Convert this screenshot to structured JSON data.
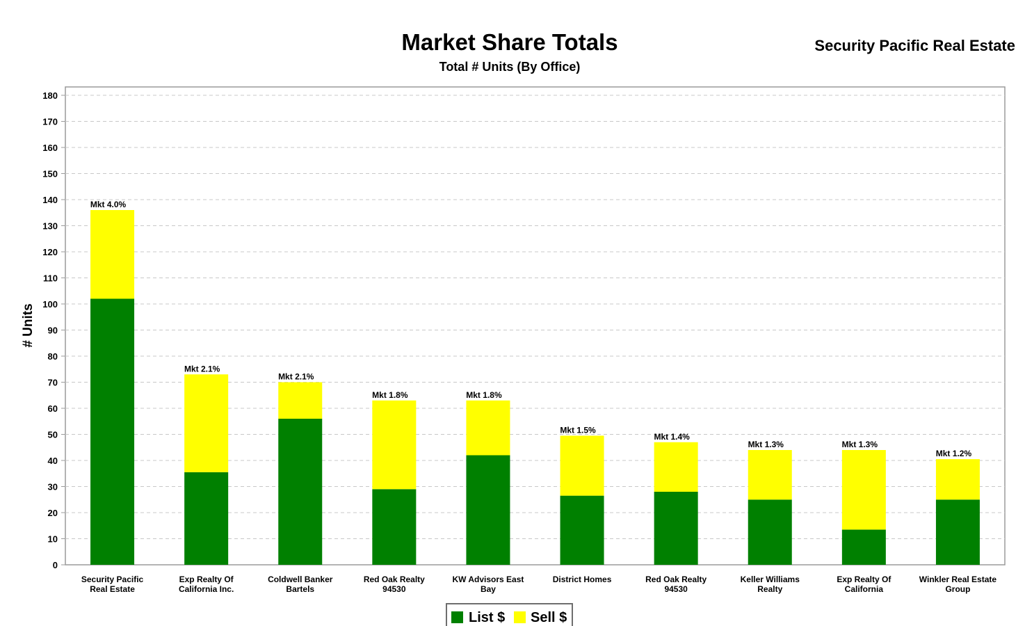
{
  "chart_data": {
    "type": "bar",
    "stacked": true,
    "title": "Market Share Totals",
    "subtitle": "Total # Units (By Office)",
    "brand": "Security Pacific Real Estate",
    "ylabel": "# Units",
    "ylim": [
      0,
      180
    ],
    "yticks": [
      0,
      10,
      20,
      30,
      40,
      50,
      60,
      70,
      80,
      90,
      100,
      110,
      120,
      130,
      140,
      150,
      160,
      170,
      180
    ],
    "grid": true,
    "legend_position": "bottom",
    "categories": [
      [
        "Security Pacific",
        "Real Estate"
      ],
      [
        "Exp Realty Of",
        "California Inc."
      ],
      [
        "Coldwell Banker",
        "Bartels"
      ],
      [
        "Red Oak Realty",
        "94530"
      ],
      [
        "KW Advisors East",
        "Bay"
      ],
      [
        "District Homes"
      ],
      [
        "Red Oak Realty",
        "94530"
      ],
      [
        "Keller Williams",
        "Realty"
      ],
      [
        "Exp Realty Of",
        "California"
      ],
      [
        "Winkler Real Estate",
        "Group"
      ]
    ],
    "series": [
      {
        "name": "List $",
        "color": "#008000",
        "values": [
          102,
          35.5,
          56,
          29,
          42,
          26.5,
          28,
          25,
          13.5,
          25
        ]
      },
      {
        "name": "Sell $",
        "color": "#ffff00",
        "values": [
          34,
          37.5,
          14,
          34,
          21,
          23,
          19,
          19,
          30.5,
          15.5
        ]
      }
    ],
    "annotations": [
      "Mkt 4.0%",
      "Mkt 2.1%",
      "Mkt 2.1%",
      "Mkt 1.8%",
      "Mkt 1.8%",
      "Mkt 1.5%",
      "Mkt 1.4%",
      "Mkt 1.3%",
      "Mkt 1.3%",
      "Mkt 1.2%"
    ]
  }
}
